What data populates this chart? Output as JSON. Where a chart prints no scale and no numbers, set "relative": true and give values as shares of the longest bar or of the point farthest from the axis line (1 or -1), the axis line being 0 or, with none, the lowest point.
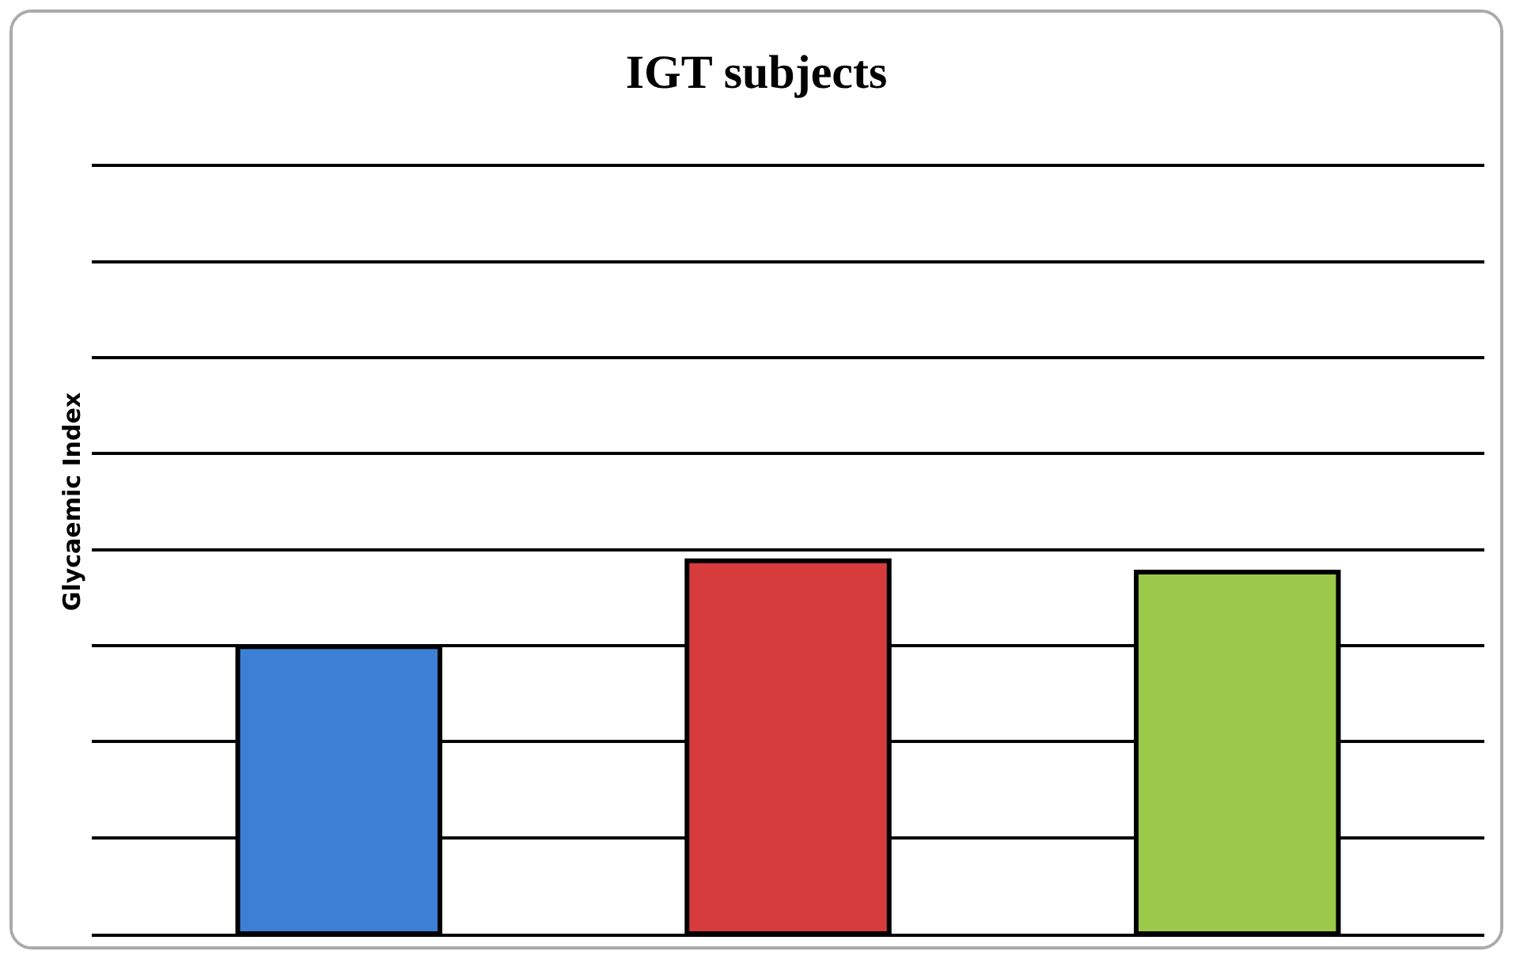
{
  "chart_data": {
    "type": "bar",
    "title": "IGT subjects",
    "ylabel": "Glycaemic Index",
    "relative": true,
    "grid": "y",
    "categories": [
      null,
      null,
      null
    ],
    "values": [
      0.77,
      1,
      0.97
    ],
    "colors": [
      "#3d7fd4",
      "#d63c3c",
      "#9cc94a"
    ]
  }
}
